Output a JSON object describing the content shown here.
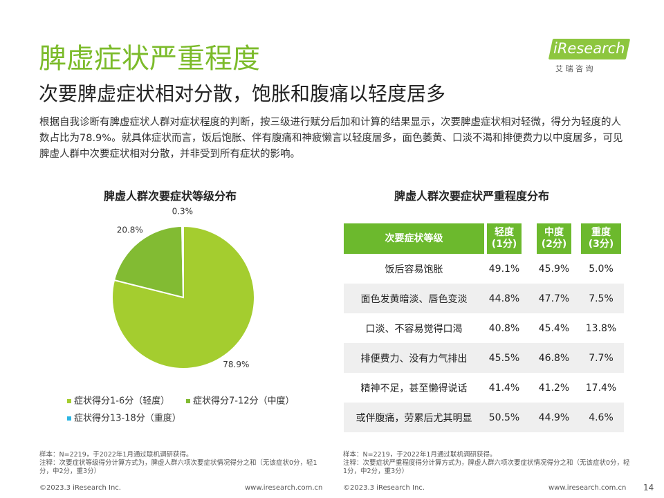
{
  "header": {
    "title": "脾虚症状严重程度",
    "subtitle": "次要脾虚症状相对分散，饱胀和腹痛以轻度居多",
    "logo": "iResearch",
    "logo_sub": "艾 瑞 咨 询"
  },
  "description": "根据自我诊断有脾虚症状人群对症状程度的判断，按三级进行赋分后加和计算的结果显示，次要脾虚症状相对轻微，得分为轻度的人数占比为78.9%。就具体症状而言，饭后饱胀、伴有腹痛和神疲懒言以轻度居多，面色萎黄、口淡不渴和排便费力以中度居多，可见脾虚人群中次要症状相对分散，并非受到所有症状的影响。",
  "chart_data": {
    "type": "pie",
    "title": "脾虚人群次要症状等级分布",
    "labels": [
      "症状得分1-6分（轻度）",
      "症状得分7-12分（中度）",
      "症状得分13-18分（重度）"
    ],
    "values": [
      78.9,
      20.8,
      0.3
    ],
    "value_labels": [
      "78.9%",
      "20.8%",
      "0.3%"
    ],
    "colors": [
      "#a4cd2f",
      "#82bb33",
      "#2bb5e3"
    ],
    "legend": "bottom"
  },
  "table": {
    "title": "脾虚人群次要症状严重程度分布",
    "header": [
      {
        "name": "次要症状等级"
      },
      {
        "name": "轻度",
        "score": "(1分)"
      },
      {
        "name": "中度",
        "score": "(2分)"
      },
      {
        "name": "重度",
        "score": "(3分)"
      }
    ],
    "rows": [
      [
        "饭后容易饱胀",
        "49.1%",
        "45.9%",
        "5.0%"
      ],
      [
        "面色发黄暗淡、唇色变淡",
        "44.8%",
        "47.7%",
        "7.5%"
      ],
      [
        "口淡、不容易觉得口渴",
        "40.8%",
        "45.4%",
        "13.8%"
      ],
      [
        "排便费力、没有力气排出",
        "45.5%",
        "46.8%",
        "7.7%"
      ],
      [
        "精神不足，甚至懒得说话",
        "41.4%",
        "41.2%",
        "17.4%"
      ],
      [
        "或伴腹痛，劳累后尤其明显",
        "50.5%",
        "44.9%",
        "4.6%"
      ]
    ]
  },
  "notes": {
    "left": [
      "样本：N=2219，于2022年1月通过联机调研获得。",
      "注释：次要症状等级得分计算方式为，脾虚人群六项次要症状情况得分之和（无该症状0分，轻1分，中2分，重3分）"
    ],
    "right": [
      "样本：N=2219，于2022年1月通过联机调研获得。",
      "注释：次要症状严重程度得分计算方式为，脾虚人群六项次要症状情况得分之和（无该症状0分，轻1分，中2分，重3分）"
    ]
  },
  "footer": {
    "copyright_left": "©2023.3 iResearch Inc.",
    "url_left": "www.iresearch.com.cn",
    "copyright_right": "©2023.3 iResearch Inc.",
    "url_right": "www.iresearch.com.cn",
    "page": "14"
  }
}
